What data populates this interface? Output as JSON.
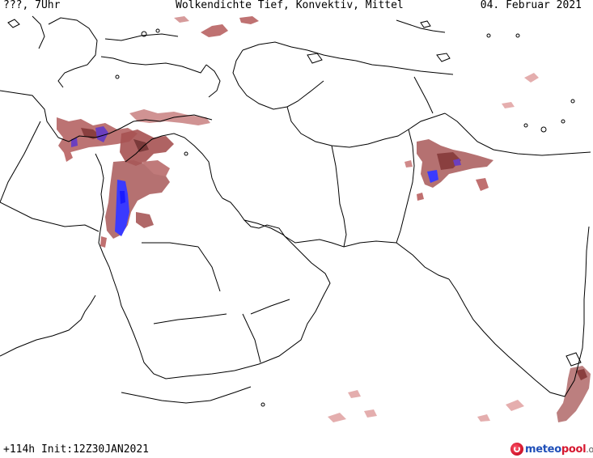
{
  "header": {
    "left": "???, 7Uhr",
    "center": "Wolkendichte   Tief, Konvektiv, Mittel",
    "right": "04. Februar 2021"
  },
  "footer": {
    "run_info": "+114h Init:12Z30JAN2021"
  },
  "logo": {
    "part1": "meteo",
    "part2": "pool",
    "part3": ".org"
  },
  "map": {
    "region": "Middle East / South Asia",
    "colors": {
      "background": "#ffffff",
      "borders": "#000000",
      "cloud_low": "#e8b0b0",
      "cloud_mid": "#c07070",
      "cloud_high": "#9c4a4a",
      "cloud_dense": "#3a3aff",
      "cloud_dense_purple": "#7a3a9a"
    }
  }
}
